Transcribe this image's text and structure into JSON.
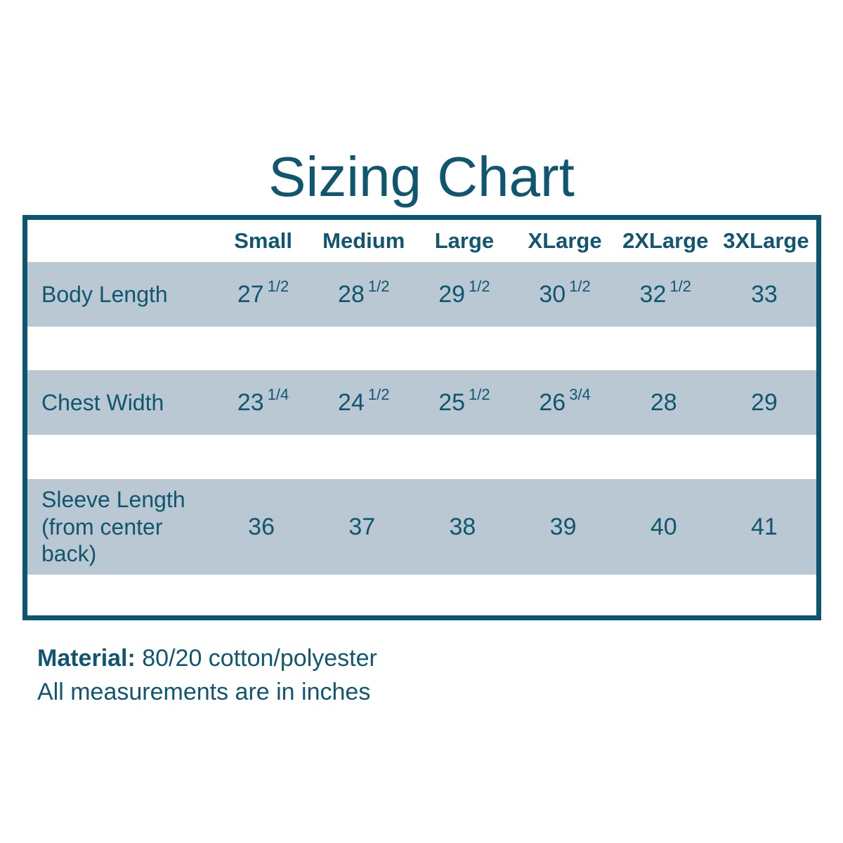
{
  "page": {
    "title": "Sizing Chart",
    "colors": {
      "text_teal": "#11566F",
      "border_teal": "#0E5570",
      "row_band": "#BAC8D3",
      "background": "#FFFFFF"
    }
  },
  "table": {
    "columns": [
      "Small",
      "Medium",
      "Large",
      "XLarge",
      "2XLarge",
      "3XLarge"
    ],
    "rows": [
      {
        "label": "Body Length",
        "values": [
          {
            "whole": "27",
            "frac": "1/2"
          },
          {
            "whole": "28",
            "frac": "1/2"
          },
          {
            "whole": "29",
            "frac": "1/2"
          },
          {
            "whole": "30",
            "frac": "1/2"
          },
          {
            "whole": "32",
            "frac": "1/2"
          },
          {
            "whole": "33",
            "frac": ""
          }
        ]
      },
      {
        "label": "Chest Width",
        "values": [
          {
            "whole": "23",
            "frac": "1/4"
          },
          {
            "whole": "24",
            "frac": "1/2"
          },
          {
            "whole": "25",
            "frac": "1/2"
          },
          {
            "whole": "26",
            "frac": "3/4"
          },
          {
            "whole": "28",
            "frac": ""
          },
          {
            "whole": "29",
            "frac": ""
          }
        ]
      },
      {
        "label": "Sleeve Length (from center back)",
        "values": [
          {
            "whole": "36",
            "frac": ""
          },
          {
            "whole": "37",
            "frac": ""
          },
          {
            "whole": "38",
            "frac": ""
          },
          {
            "whole": "39",
            "frac": ""
          },
          {
            "whole": "40",
            "frac": ""
          },
          {
            "whole": "41",
            "frac": ""
          }
        ]
      }
    ]
  },
  "notes": {
    "material_label": "Material:",
    "material_value": " 80/20 cotton/polyester",
    "measurements_note": "All measurements are in inches"
  },
  "chart_data": {
    "type": "table",
    "title": "Sizing Chart",
    "columns": [
      "Small",
      "Medium",
      "Large",
      "XLarge",
      "2XLarge",
      "3XLarge"
    ],
    "rows": [
      {
        "label": "Body Length",
        "values": [
          27.5,
          28.5,
          29.5,
          30.5,
          32.5,
          33
        ]
      },
      {
        "label": "Chest Width",
        "values": [
          23.25,
          24.5,
          25.5,
          26.75,
          28,
          29
        ]
      },
      {
        "label": "Sleeve Length (from center back)",
        "values": [
          36,
          37,
          38,
          39,
          40,
          41
        ]
      }
    ],
    "units": "inches",
    "notes": [
      "Material: 80/20 cotton/polyester",
      "All measurements are in inches"
    ]
  }
}
